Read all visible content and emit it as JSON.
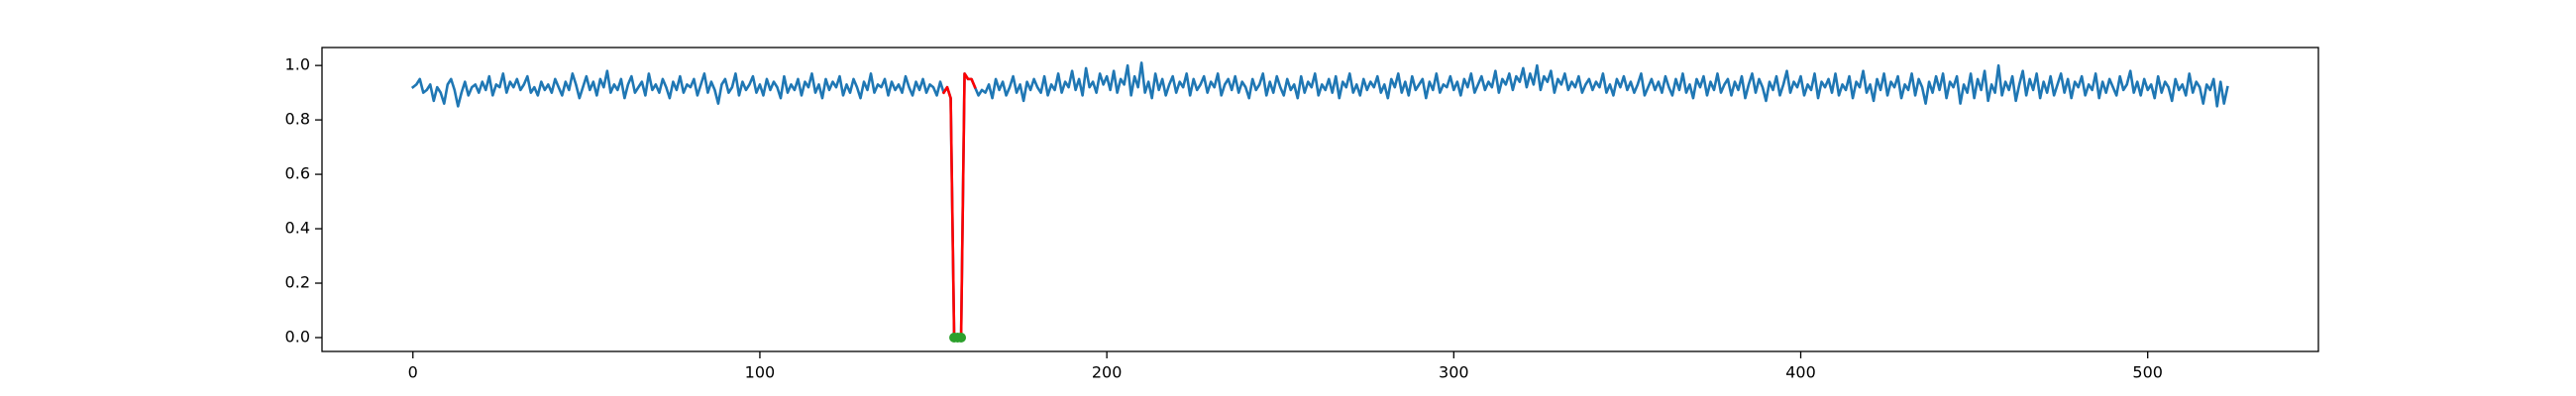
{
  "chart_data": {
    "type": "line",
    "xlim": [
      -26.2,
      549.2
    ],
    "ylim": [
      -0.051,
      1.066
    ],
    "xticks": [
      0,
      100,
      200,
      300,
      400,
      500
    ],
    "yticks": [
      {
        "value": 0,
        "label": "0.0"
      },
      0.2,
      0.4,
      0.6,
      0.8,
      {
        "value": 1,
        "label": "1.0"
      }
    ],
    "series": [
      {
        "type": "line",
        "color": "#1f77b4",
        "values": [
          0.92,
          0.93,
          0.95,
          0.9,
          0.91,
          0.93,
          0.87,
          0.92,
          0.9,
          0.86,
          0.93,
          0.95,
          0.91,
          0.85,
          0.9,
          0.94,
          0.89,
          0.92,
          0.93,
          0.9,
          0.94,
          0.91,
          0.96,
          0.89,
          0.93,
          0.92,
          0.97,
          0.9,
          0.94,
          0.92,
          0.95,
          0.91,
          0.93,
          0.96,
          0.9,
          0.92,
          0.89,
          0.94,
          0.91,
          0.93,
          0.9,
          0.95,
          0.92,
          0.89,
          0.94,
          0.91,
          0.97,
          0.93,
          0.88,
          0.92,
          0.96,
          0.91,
          0.94,
          0.89,
          0.95,
          0.92,
          0.98,
          0.9,
          0.93,
          0.91,
          0.95,
          0.88,
          0.93,
          0.96,
          0.9,
          0.92,
          0.94,
          0.89,
          0.97,
          0.91,
          0.93,
          0.9,
          0.95,
          0.92,
          0.88,
          0.94,
          0.91,
          0.96,
          0.9,
          0.93,
          0.92,
          0.95,
          0.89,
          0.93,
          0.97,
          0.9,
          0.94,
          0.91,
          0.86,
          0.93,
          0.95,
          0.9,
          0.92,
          0.97,
          0.89,
          0.94,
          0.91,
          0.93,
          0.96,
          0.9,
          0.93,
          0.89,
          0.95,
          0.91,
          0.94,
          0.92,
          0.88,
          0.96,
          0.9,
          0.93,
          0.91,
          0.95,
          0.89,
          0.94,
          0.92,
          0.97,
          0.9,
          0.93,
          0.88,
          0.95,
          0.91,
          0.94,
          0.92,
          0.96,
          0.89,
          0.93,
          0.9,
          0.95,
          0.92,
          0.88,
          0.94,
          0.91,
          0.97,
          0.9,
          0.93,
          0.92,
          0.95,
          0.89,
          0.94,
          0.91,
          0.93,
          0.9,
          0.96,
          0.92,
          0.89,
          0.94,
          0.91,
          0.95,
          0.9,
          0.93,
          0.92,
          0.89,
          0.94,
          0.9,
          0.92,
          0.88,
          0,
          0,
          0,
          0.97,
          0.95,
          0.95,
          0.92,
          0.89,
          0.91,
          0.9,
          0.93,
          0.88,
          0.95,
          0.91,
          0.94,
          0.89,
          0.92,
          0.96,
          0.9,
          0.93,
          0.87,
          0.94,
          0.91,
          0.95,
          0.92,
          0.9,
          0.96,
          0.89,
          0.93,
          0.91,
          0.97,
          0.9,
          0.94,
          0.92,
          0.98,
          0.91,
          0.95,
          0.89,
          0.99,
          0.92,
          0.94,
          0.9,
          0.97,
          0.93,
          0.96,
          0.91,
          0.98,
          0.9,
          0.95,
          0.93,
          1.0,
          0.89,
          0.96,
          0.92,
          1.01,
          0.9,
          0.94,
          0.88,
          0.97,
          0.91,
          0.95,
          0.89,
          0.93,
          0.96,
          0.9,
          0.94,
          0.92,
          0.97,
          0.89,
          0.95,
          0.91,
          0.93,
          0.96,
          0.9,
          0.94,
          0.92,
          0.97,
          0.89,
          0.93,
          0.95,
          0.91,
          0.96,
          0.9,
          0.94,
          0.92,
          0.88,
          0.95,
          0.91,
          0.93,
          0.97,
          0.89,
          0.94,
          0.9,
          0.96,
          0.92,
          0.89,
          0.95,
          0.91,
          0.93,
          0.88,
          0.96,
          0.9,
          0.94,
          0.92,
          0.97,
          0.89,
          0.93,
          0.91,
          0.95,
          0.9,
          0.96,
          0.88,
          0.94,
          0.92,
          0.97,
          0.9,
          0.93,
          0.89,
          0.95,
          0.91,
          0.94,
          0.92,
          0.96,
          0.9,
          0.93,
          0.88,
          0.95,
          0.92,
          0.97,
          0.9,
          0.94,
          0.89,
          0.96,
          0.91,
          0.93,
          0.95,
          0.88,
          0.94,
          0.91,
          0.97,
          0.9,
          0.93,
          0.92,
          0.96,
          0.91,
          0.94,
          0.89,
          0.95,
          0.92,
          0.97,
          0.9,
          0.93,
          0.96,
          0.91,
          0.94,
          0.92,
          0.98,
          0.9,
          0.95,
          0.93,
          0.97,
          0.91,
          0.96,
          0.94,
          0.99,
          0.92,
          0.97,
          0.93,
          1.0,
          0.91,
          0.96,
          0.94,
          0.98,
          0.9,
          0.95,
          0.93,
          0.97,
          0.91,
          0.94,
          0.92,
          0.96,
          0.9,
          0.93,
          0.95,
          0.91,
          0.94,
          0.92,
          0.97,
          0.9,
          0.93,
          0.89,
          0.95,
          0.92,
          0.96,
          0.91,
          0.94,
          0.9,
          0.93,
          0.97,
          0.89,
          0.92,
          0.95,
          0.91,
          0.94,
          0.9,
          0.96,
          0.92,
          0.89,
          0.95,
          0.91,
          0.97,
          0.9,
          0.93,
          0.88,
          0.95,
          0.92,
          0.96,
          0.89,
          0.94,
          0.91,
          0.97,
          0.9,
          0.93,
          0.95,
          0.89,
          0.94,
          0.91,
          0.96,
          0.88,
          0.93,
          0.97,
          0.9,
          0.95,
          0.92,
          0.87,
          0.94,
          0.91,
          0.96,
          0.89,
          0.93,
          0.98,
          0.9,
          0.94,
          0.92,
          0.96,
          0.89,
          0.93,
          0.91,
          0.97,
          0.88,
          0.94,
          0.92,
          0.95,
          0.9,
          0.97,
          0.89,
          0.93,
          0.91,
          0.96,
          0.88,
          0.94,
          0.92,
          0.98,
          0.9,
          0.93,
          0.87,
          0.95,
          0.91,
          0.97,
          0.89,
          0.94,
          0.92,
          0.96,
          0.88,
          0.93,
          0.91,
          0.97,
          0.89,
          0.95,
          0.92,
          0.86,
          0.94,
          0.9,
          0.96,
          0.91,
          0.97,
          0.88,
          0.94,
          0.92,
          0.96,
          0.86,
          0.93,
          0.9,
          0.97,
          0.88,
          0.95,
          0.91,
          0.98,
          0.87,
          0.93,
          0.9,
          1.0,
          0.89,
          0.94,
          0.91,
          0.96,
          0.87,
          0.93,
          0.98,
          0.89,
          0.95,
          0.91,
          0.97,
          0.88,
          0.94,
          0.9,
          0.96,
          0.89,
          0.93,
          0.97,
          0.9,
          0.95,
          0.88,
          0.94,
          0.92,
          0.96,
          0.89,
          0.93,
          0.91,
          0.97,
          0.88,
          0.94,
          0.9,
          0.95,
          0.92,
          0.89,
          0.96,
          0.91,
          0.93,
          0.98,
          0.9,
          0.94,
          0.89,
          0.95,
          0.91,
          0.93,
          0.88,
          0.96,
          0.9,
          0.94,
          0.92,
          0.87,
          0.95,
          0.91,
          0.93,
          0.89,
          0.97,
          0.9,
          0.94,
          0.92,
          0.86,
          0.93,
          0.91,
          0.95,
          0.85,
          0.94,
          0.86,
          0.92
        ]
      },
      {
        "type": "line",
        "color": "#ff0000",
        "x": [
          153,
          154,
          155,
          156,
          157,
          158,
          159,
          160,
          161,
          162
        ],
        "values": [
          0.9,
          0.92,
          0.88,
          0,
          0,
          0,
          0.97,
          0.95,
          0.95,
          0.92
        ]
      },
      {
        "type": "scatter",
        "color": "#2ca02c",
        "x": [
          156,
          157,
          158
        ],
        "values": [
          0,
          0,
          0
        ]
      }
    ]
  }
}
